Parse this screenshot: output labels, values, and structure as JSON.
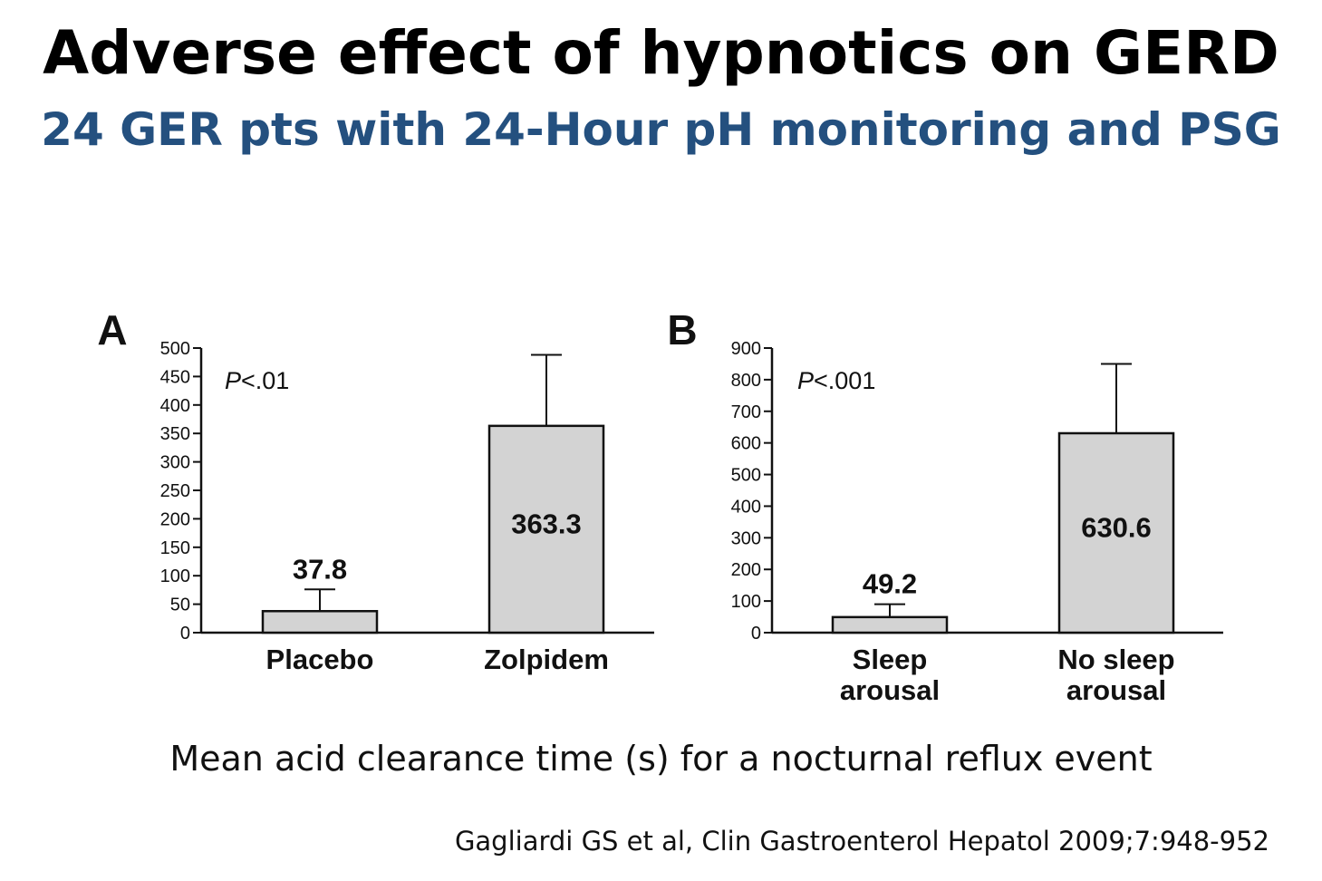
{
  "slide": {
    "title": "Adverse effect of hypnotics on GERD",
    "subtitle": "24 GER pts with 24-Hour pH monitoring and PSG",
    "caption": "Mean acid clearance time (s) for a nocturnal reflux event",
    "citation": "Gagliardi GS et al, Clin Gastroenterol Hepatol 2009;7:948-952"
  },
  "colors": {
    "title": "#000000",
    "subtitle": "#24507F",
    "bar_fill": "#D3D3D3",
    "ink": "#111111"
  },
  "chart_data": [
    {
      "type": "bar",
      "panel_label": "A",
      "annotation": "P<.01",
      "categories": [
        "Placebo",
        "Zolpidem"
      ],
      "values": [
        37.8,
        363.3
      ],
      "value_labels": [
        "37.8",
        "363.3"
      ],
      "error_upper": [
        76,
        488
      ],
      "ylim": [
        0,
        500
      ],
      "yticks": [
        0,
        50,
        100,
        150,
        200,
        250,
        300,
        350,
        400,
        450,
        500
      ]
    },
    {
      "type": "bar",
      "panel_label": "B",
      "annotation": "P<.001",
      "categories": [
        "Sleep\narousal",
        "No sleep\narousal"
      ],
      "values": [
        49.2,
        630.6
      ],
      "value_labels": [
        "49.2",
        "630.6"
      ],
      "error_upper": [
        90,
        850
      ],
      "ylim": [
        0,
        900
      ],
      "yticks": [
        0,
        100,
        200,
        300,
        400,
        500,
        600,
        700,
        800,
        900
      ]
    }
  ]
}
